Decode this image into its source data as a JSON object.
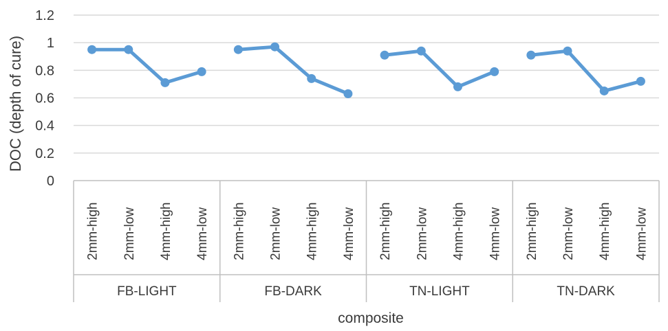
{
  "chart_data": {
    "type": "line",
    "title": "",
    "xlabel": "composite",
    "ylabel": "DOC (depth of cure)",
    "ylim": [
      0,
      1.2
    ],
    "yticks": [
      0,
      0.2,
      0.4,
      0.6,
      0.8,
      1,
      1.2
    ],
    "ytick_labels": [
      "0",
      "0.2",
      "0.4",
      "0.6",
      "0.8",
      "1",
      "1.2"
    ],
    "grid": true,
    "legend": "none",
    "groups": [
      {
        "name": "FB-LIGHT",
        "categories": [
          "2mm-high",
          "2mm-low",
          "4mm-high",
          "4mm-low"
        ],
        "values": [
          0.95,
          0.95,
          0.71,
          0.79
        ]
      },
      {
        "name": "FB-DARK",
        "categories": [
          "2mm-high",
          "2mm-low",
          "4mm-high",
          "4mm-low"
        ],
        "values": [
          0.95,
          0.97,
          0.74,
          0.63
        ]
      },
      {
        "name": "TN-LIGHT",
        "categories": [
          "2mm-high",
          "2mm-low",
          "4mm-high",
          "4mm-low"
        ],
        "values": [
          0.91,
          0.94,
          0.68,
          0.79
        ]
      },
      {
        "name": "TN-DARK",
        "categories": [
          "2mm-high",
          "2mm-low",
          "4mm-high",
          "4mm-low"
        ],
        "values": [
          0.91,
          0.94,
          0.65,
          0.72
        ]
      }
    ],
    "colors": {
      "series": "#5b9bd5",
      "grid": "#d9d9d9",
      "axis": "#bfbfbf",
      "text": "#3a3a3a"
    }
  }
}
